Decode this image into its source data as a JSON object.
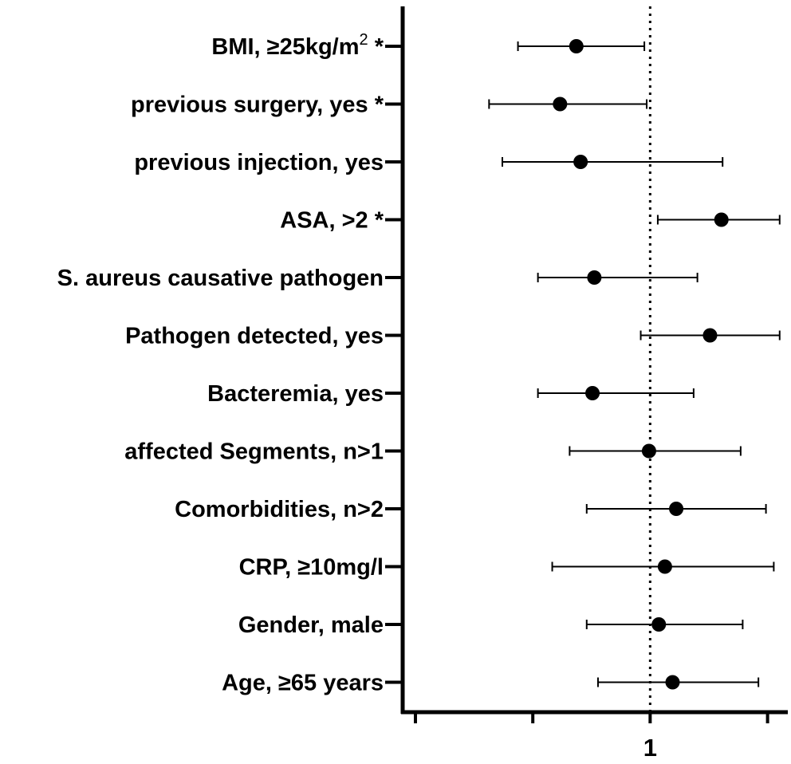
{
  "chart_data": {
    "type": "forest",
    "title": "",
    "xlabel": "",
    "ylabel": "",
    "x_scale": "log",
    "xlim": [
      0.125,
      3.2
    ],
    "x_ticks": [
      0.125,
      0.3536,
      1,
      2.83
    ],
    "x_tick_labels": [
      "",
      "",
      "1",
      ""
    ],
    "reference_line": 1,
    "grid": false,
    "categories": [
      {
        "main": "BMI, ≥25kg/m",
        "sup": "2",
        "suffix": " *"
      },
      {
        "main": "previous surgery, yes *",
        "sup": "",
        "suffix": ""
      },
      {
        "main": "previous injection, yes",
        "sup": "",
        "suffix": ""
      },
      {
        "main": "ASA, >2 *",
        "sup": "",
        "suffix": ""
      },
      {
        "main": "S. aureus causative pathogen",
        "sup": "",
        "suffix": ""
      },
      {
        "main": "Pathogen detected, yes",
        "sup": "",
        "suffix": ""
      },
      {
        "main": "Bacteremia, yes",
        "sup": "",
        "suffix": ""
      },
      {
        "main": "affected Segments, n>1",
        "sup": "",
        "suffix": ""
      },
      {
        "main": "Comorbidities, n>2",
        "sup": "",
        "suffix": ""
      },
      {
        "main": "CRP, ≥10mg/l",
        "sup": "",
        "suffix": ""
      },
      {
        "main": "Gender, male",
        "sup": "",
        "suffix": ""
      },
      {
        "main": "Age, ≥65 years",
        "sup": "",
        "suffix": ""
      }
    ],
    "estimates": [
      0.52,
      0.45,
      0.54,
      1.88,
      0.61,
      1.7,
      0.6,
      0.99,
      1.26,
      1.14,
      1.08,
      1.22
    ],
    "ci_lower": [
      0.31,
      0.24,
      0.27,
      1.07,
      0.37,
      0.92,
      0.37,
      0.49,
      0.57,
      0.42,
      0.57,
      0.63
    ],
    "ci_upper": [
      0.95,
      0.97,
      1.9,
      3.15,
      1.52,
      3.15,
      1.47,
      2.23,
      2.79,
      2.99,
      2.27,
      2.61
    ]
  }
}
